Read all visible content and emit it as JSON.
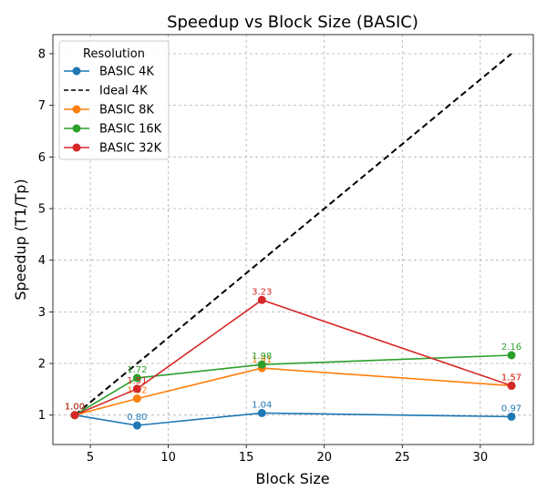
{
  "chart_data": {
    "type": "line",
    "title": "Speedup vs Block Size (BASIC)",
    "xlabel": "Block Size",
    "ylabel": "Speedup (T1/Tp)",
    "xlim": [
      2.6,
      33.4
    ],
    "ylim": [
      0.43,
      8.37
    ],
    "xticks": [
      5,
      10,
      15,
      20,
      25,
      30
    ],
    "yticks": [
      1,
      2,
      3,
      4,
      5,
      6,
      7,
      8
    ],
    "grid": true,
    "legend": {
      "title": "Resolution",
      "placement": "top-left"
    },
    "x": [
      4,
      8,
      16,
      32
    ],
    "series": [
      {
        "name": "BASIC 4K",
        "color": "#1f77b4",
        "style": "solid-marker",
        "values": [
          1.0,
          0.8,
          1.04,
          0.97
        ],
        "labels": [
          "1.00",
          "0.80",
          "1.04",
          "0.97"
        ]
      },
      {
        "name": "Ideal 4K",
        "color": "#000000",
        "style": "dashed",
        "x": [
          4,
          32
        ],
        "values": [
          1,
          8
        ]
      },
      {
        "name": "BASIC 8K",
        "color": "#ff7f0e",
        "style": "solid-marker",
        "values": [
          1.0,
          1.32,
          1.91,
          1.57
        ],
        "labels": [
          "1.00",
          "1.32",
          "1.91",
          "1.57"
        ]
      },
      {
        "name": "BASIC 16K",
        "color": "#2ca02c",
        "style": "solid-marker",
        "values": [
          1.0,
          1.72,
          1.98,
          2.16
        ],
        "labels": [
          "1.00",
          "1.72",
          "1.98",
          "2.16"
        ]
      },
      {
        "name": "BASIC 32K",
        "color": "#d62728",
        "style": "solid-marker",
        "values": [
          1.0,
          1.51,
          3.23,
          1.57
        ],
        "labels": [
          "1.00",
          "1.51",
          "3.23",
          "1.57"
        ]
      }
    ]
  }
}
